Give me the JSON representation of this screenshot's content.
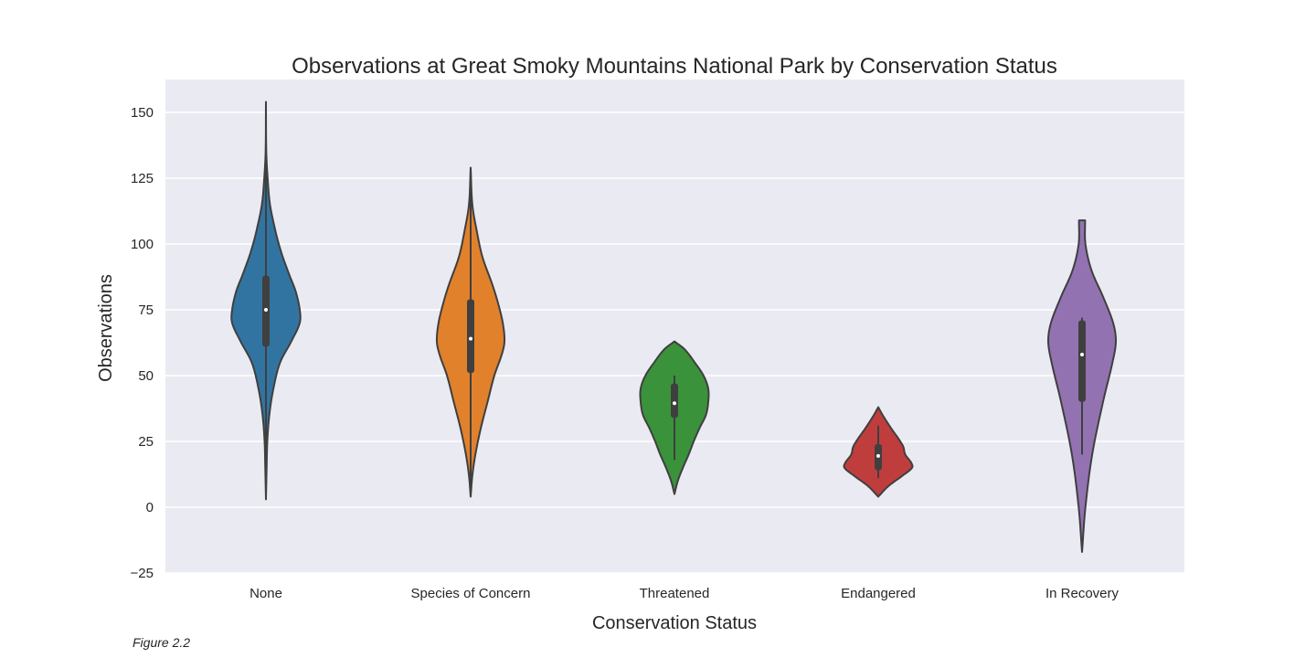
{
  "chart_data": {
    "type": "violin",
    "title": "Observations at Great Smoky Mountains National Park by Conservation Status",
    "xlabel": "Conservation Status",
    "ylabel": "Observations",
    "ylim": [
      -30,
      162
    ],
    "yticks": [
      -25,
      0,
      25,
      50,
      75,
      100,
      125,
      150
    ],
    "grid": true,
    "legend": "none",
    "categories": [
      "None",
      "Species of Concern",
      "Threatened",
      "Endangered",
      "In Recovery"
    ],
    "series": [
      {
        "category": "None",
        "color": "#3274a1",
        "range": [
          3,
          154
        ],
        "q1": 61,
        "median": 75,
        "q3": 88,
        "whisker": [
          3,
          154
        ],
        "density_profile": [
          [
            3,
            0.0
          ],
          [
            15,
            0.02
          ],
          [
            25,
            0.04
          ],
          [
            35,
            0.1
          ],
          [
            45,
            0.22
          ],
          [
            55,
            0.42
          ],
          [
            63,
            0.75
          ],
          [
            70,
            1.0
          ],
          [
            75,
            1.0
          ],
          [
            82,
            0.88
          ],
          [
            88,
            0.7
          ],
          [
            95,
            0.5
          ],
          [
            100,
            0.38
          ],
          [
            105,
            0.28
          ],
          [
            115,
            0.12
          ],
          [
            125,
            0.05
          ],
          [
            135,
            0.01
          ],
          [
            154,
            0.0
          ]
        ]
      },
      {
        "category": "Species of Concern",
        "color": "#e1812c",
        "range": [
          4,
          129
        ],
        "q1": 51,
        "median": 64,
        "q3": 79,
        "whisker": [
          4,
          129
        ],
        "density_profile": [
          [
            4,
            0.0
          ],
          [
            12,
            0.05
          ],
          [
            20,
            0.14
          ],
          [
            30,
            0.3
          ],
          [
            40,
            0.5
          ],
          [
            50,
            0.7
          ],
          [
            58,
            0.92
          ],
          [
            63,
            1.0
          ],
          [
            70,
            0.95
          ],
          [
            78,
            0.8
          ],
          [
            85,
            0.63
          ],
          [
            95,
            0.35
          ],
          [
            105,
            0.18
          ],
          [
            115,
            0.05
          ],
          [
            129,
            0.0
          ]
        ]
      },
      {
        "category": "Threatened",
        "color": "#3a923a",
        "range": [
          5,
          63
        ],
        "q1": 34,
        "median": 39.5,
        "q3": 47,
        "whisker": [
          18,
          50
        ],
        "density_profile": [
          [
            5,
            0.0
          ],
          [
            10,
            0.1
          ],
          [
            15,
            0.25
          ],
          [
            20,
            0.42
          ],
          [
            25,
            0.57
          ],
          [
            30,
            0.74
          ],
          [
            35,
            0.93
          ],
          [
            40,
            1.0
          ],
          [
            45,
            1.0
          ],
          [
            50,
            0.86
          ],
          [
            55,
            0.6
          ],
          [
            60,
            0.3
          ],
          [
            63,
            0.0
          ]
        ]
      },
      {
        "category": "Endangered",
        "color": "#c03d3e",
        "range": [
          4,
          38
        ],
        "q1": 14,
        "median": 19.5,
        "q3": 24,
        "whisker": [
          11,
          31
        ],
        "density_profile": [
          [
            4,
            0.0
          ],
          [
            8,
            0.3
          ],
          [
            12,
            0.72
          ],
          [
            15,
            1.0
          ],
          [
            17,
            0.97
          ],
          [
            20,
            0.8
          ],
          [
            23,
            0.74
          ],
          [
            26,
            0.6
          ],
          [
            30,
            0.38
          ],
          [
            35,
            0.13
          ],
          [
            38,
            0.0
          ]
        ]
      },
      {
        "category": "In Recovery",
        "color": "#9372b2",
        "range": [
          -17,
          109
        ],
        "q1": 40,
        "median": 58,
        "q3": 71,
        "whisker": [
          20,
          72
        ],
        "density_profile": [
          [
            -17,
            0.0
          ],
          [
            0,
            0.1
          ],
          [
            20,
            0.3
          ],
          [
            40,
            0.62
          ],
          [
            55,
            0.9
          ],
          [
            63,
            1.0
          ],
          [
            70,
            0.92
          ],
          [
            80,
            0.62
          ],
          [
            90,
            0.28
          ],
          [
            100,
            0.1
          ],
          [
            109,
            0.09
          ]
        ]
      }
    ]
  },
  "caption": "Figure 2.2"
}
